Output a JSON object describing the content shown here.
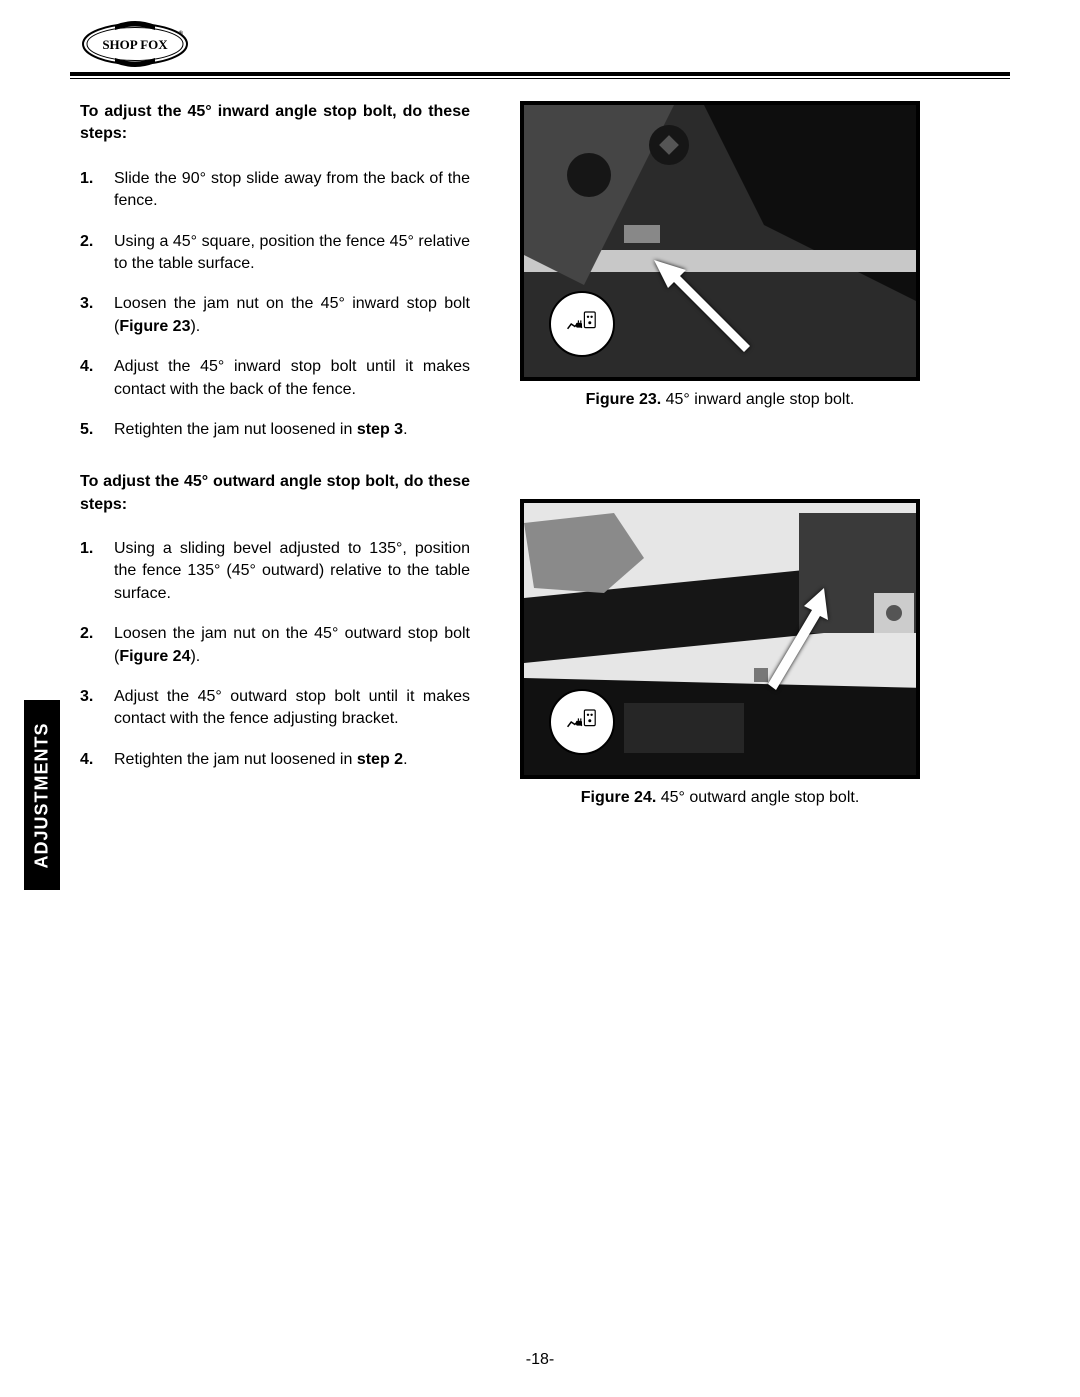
{
  "brand": "SHOP FOX",
  "side_tab": "ADJUSTMENTS",
  "page_number": "-18-",
  "section1": {
    "intro": "To adjust the 45° inward angle stop bolt, do these steps:",
    "steps": [
      {
        "text_a": "Slide the 90° stop slide away from the back of the fence."
      },
      {
        "text_a": "Using a 45° square, position the fence 45° relative to the table surface."
      },
      {
        "text_a": "Loosen the jam nut on the 45° inward stop bolt (",
        "bold": "Figure 23",
        "text_b": ")."
      },
      {
        "text_a": "Adjust the 45° inward stop bolt until it makes contact with the back of the fence."
      },
      {
        "text_a": "Retighten the jam nut loosened in ",
        "bold": "step 3",
        "text_b": "."
      }
    ]
  },
  "section2": {
    "intro": "To adjust the 45° outward angle stop bolt, do these steps:",
    "steps": [
      {
        "text_a": "Using a sliding bevel adjusted to 135°, position the fence 135° (45° outward) relative to the table surface."
      },
      {
        "text_a": "Loosen the jam nut on the 45° outward stop bolt (",
        "bold": "Figure 24",
        "text_b": ")."
      },
      {
        "text_a": "Adjust the 45° outward stop bolt until it makes contact with the fence adjusting bracket."
      },
      {
        "text_a": "Retighten the jam nut loosened in ",
        "bold": "step 2",
        "text_b": "."
      }
    ]
  },
  "figure23": {
    "label_bold": "Figure 23.",
    "label_rest": " 45° inward angle stop bolt."
  },
  "figure24": {
    "label_bold": "Figure 24.",
    "label_rest": " 45° outward angle stop bolt."
  }
}
